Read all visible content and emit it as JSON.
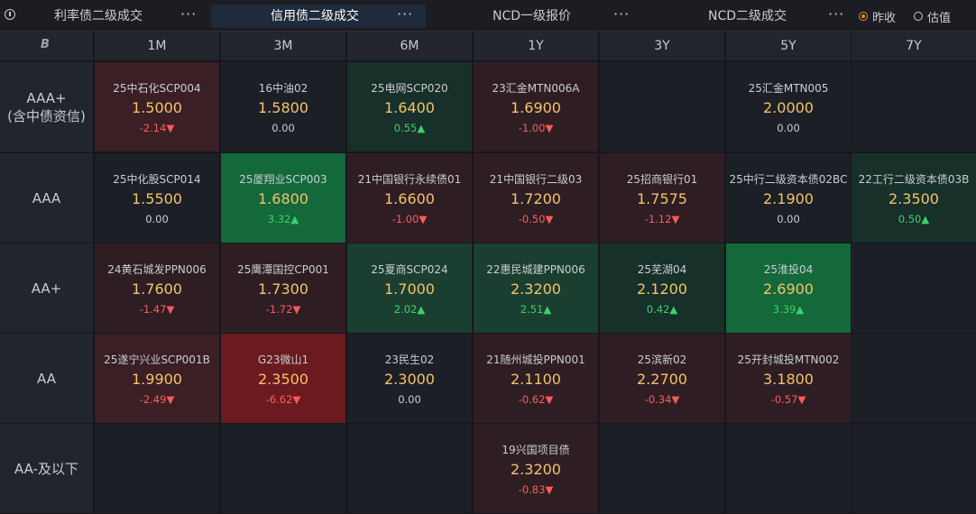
{
  "tabs": [
    {
      "label": "利率债二级成交",
      "active": false
    },
    {
      "label": "信用债二级成交",
      "active": true
    },
    {
      "label": "NCD一级报价",
      "active": false
    },
    {
      "label": "NCD二级成交",
      "active": false
    }
  ],
  "more_glyph": "···",
  "radio": {
    "options": [
      {
        "label": "昨收",
        "checked": true
      },
      {
        "label": "估值",
        "checked": false
      }
    ]
  },
  "corner_logo": "B",
  "columns": [
    "1M",
    "3M",
    "6M",
    "1Y",
    "3Y",
    "5Y",
    "7Y"
  ],
  "rows": [
    {
      "label_lines": [
        "AAA+",
        "(含中债资信)"
      ]
    },
    {
      "label_lines": [
        "AAA"
      ]
    },
    {
      "label_lines": [
        "AA+"
      ]
    },
    {
      "label_lines": [
        "AA"
      ]
    },
    {
      "label_lines": [
        "AA-及以下"
      ]
    }
  ],
  "colors": {
    "down_weak": "#2e1e24",
    "down_mid": "#3a1f25",
    "down_strong": "#6b1a20",
    "up_weak": "#17302a",
    "up_mid": "#1a3f30",
    "up_strong": "#13693a",
    "flat": "#1c1f26"
  },
  "cells": [
    [
      {
        "name": "25中石化SCP004",
        "yield": "1.5000",
        "change": "-2.14",
        "arrow": "▼",
        "dir": "down",
        "shade": "down_mid"
      },
      {
        "name": "16中油02",
        "yield": "1.5800",
        "change": "0.00",
        "arrow": "",
        "dir": "flat",
        "shade": "flat"
      },
      {
        "name": "25电网SCP020",
        "yield": "1.6400",
        "change": "0.55",
        "arrow": "▲",
        "dir": "up",
        "shade": "up_weak"
      },
      {
        "name": "23汇金MTN006A",
        "yield": "1.6900",
        "change": "-1.00",
        "arrow": "▼",
        "dir": "down",
        "shade": "down_weak"
      },
      null,
      {
        "name": "25汇金MTN005",
        "yield": "2.0000",
        "change": "0.00",
        "arrow": "",
        "dir": "flat",
        "shade": "flat"
      },
      null
    ],
    [
      {
        "name": "25中化股SCP014",
        "yield": "1.5500",
        "change": "0.00",
        "arrow": "",
        "dir": "flat",
        "shade": "flat"
      },
      {
        "name": "25厦翔业SCP003",
        "yield": "1.6800",
        "change": "3.32",
        "arrow": "▲",
        "dir": "up",
        "shade": "up_strong"
      },
      {
        "name": "21中国银行永续债01",
        "yield": "1.6600",
        "change": "-1.00",
        "arrow": "▼",
        "dir": "down",
        "shade": "down_weak"
      },
      {
        "name": "21中国银行二级03",
        "yield": "1.7200",
        "change": "-0.50",
        "arrow": "▼",
        "dir": "down",
        "shade": "down_weak"
      },
      {
        "name": "25招商银行01",
        "yield": "1.7575",
        "change": "-1.12",
        "arrow": "▼",
        "dir": "down",
        "shade": "down_weak"
      },
      {
        "name": "25中行二级资本债02BC",
        "yield": "2.1900",
        "change": "0.00",
        "arrow": "",
        "dir": "flat",
        "shade": "flat"
      },
      {
        "name": "22工行二级资本债03B",
        "yield": "2.3500",
        "change": "0.50",
        "arrow": "▲",
        "dir": "up",
        "shade": "up_weak"
      }
    ],
    [
      {
        "name": "24黄石城发PPN006",
        "yield": "1.7600",
        "change": "-1.47",
        "arrow": "▼",
        "dir": "down",
        "shade": "down_weak"
      },
      {
        "name": "25鹰潭国控CP001",
        "yield": "1.7300",
        "change": "-1.72",
        "arrow": "▼",
        "dir": "down",
        "shade": "down_weak"
      },
      {
        "name": "25夏商SCP024",
        "yield": "1.7000",
        "change": "2.02",
        "arrow": "▲",
        "dir": "up",
        "shade": "up_mid"
      },
      {
        "name": "22惠民城建PPN006",
        "yield": "2.3200",
        "change": "2.51",
        "arrow": "▲",
        "dir": "up",
        "shade": "up_mid"
      },
      {
        "name": "25芜湖04",
        "yield": "2.1200",
        "change": "0.42",
        "arrow": "▲",
        "dir": "up",
        "shade": "up_weak"
      },
      {
        "name": "25淮投04",
        "yield": "2.6900",
        "change": "3.39",
        "arrow": "▲",
        "dir": "up",
        "shade": "up_strong"
      },
      null
    ],
    [
      {
        "name": "25遂宁兴业SCP001B",
        "yield": "1.9900",
        "change": "-2.49",
        "arrow": "▼",
        "dir": "down",
        "shade": "down_mid"
      },
      {
        "name": "G23微山1",
        "yield": "2.3500",
        "change": "-6.62",
        "arrow": "▼",
        "dir": "down",
        "shade": "down_strong"
      },
      {
        "name": "23民生02",
        "yield": "2.3000",
        "change": "0.00",
        "arrow": "",
        "dir": "flat",
        "shade": "flat"
      },
      {
        "name": "21随州城投PPN001",
        "yield": "2.1100",
        "change": "-0.62",
        "arrow": "▼",
        "dir": "down",
        "shade": "down_weak"
      },
      {
        "name": "25滨新02",
        "yield": "2.2700",
        "change": "-0.34",
        "arrow": "▼",
        "dir": "down",
        "shade": "down_weak"
      },
      {
        "name": "25开封城投MTN002",
        "yield": "3.1800",
        "change": "-0.57",
        "arrow": "▼",
        "dir": "down",
        "shade": "down_weak"
      },
      null
    ],
    [
      null,
      null,
      null,
      {
        "name": "19兴国项目债",
        "yield": "2.3200",
        "change": "-0.83",
        "arrow": "▼",
        "dir": "down",
        "shade": "down_weak"
      },
      null,
      null,
      null
    ]
  ]
}
